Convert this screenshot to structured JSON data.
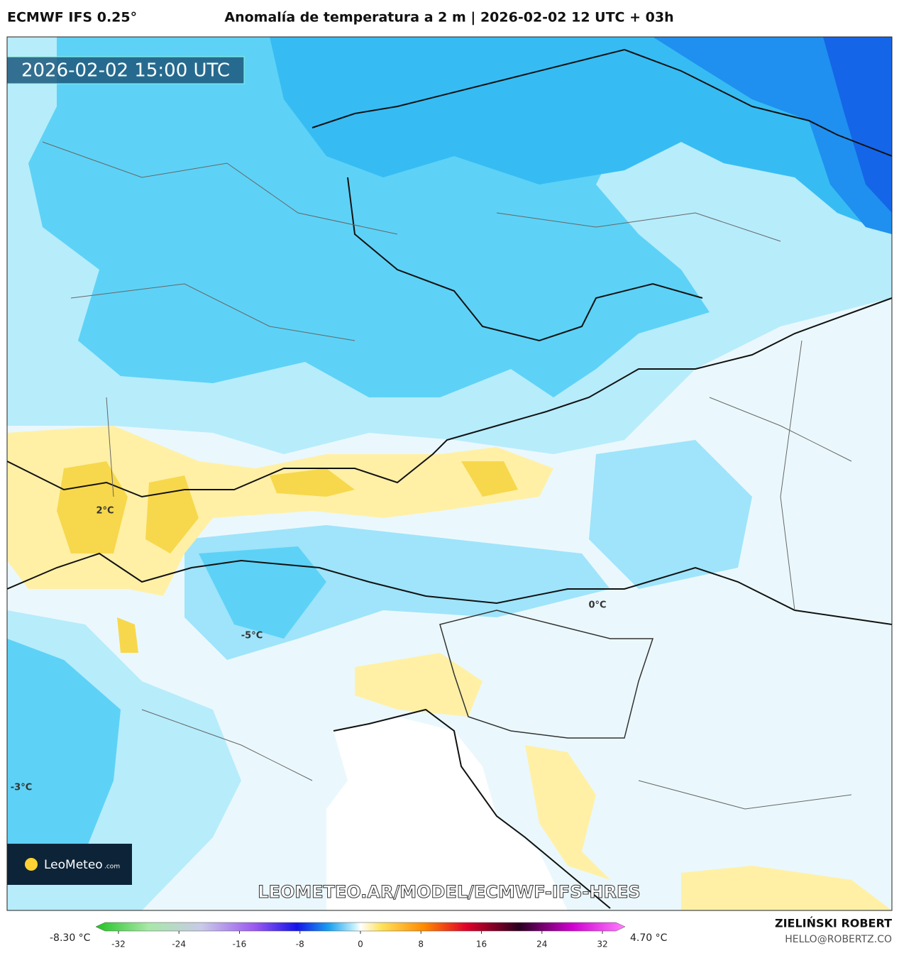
{
  "header": {
    "model": "ECMWF IFS 0.25°",
    "title": "Anomalía de temperatura a 2 m | 2026-02-02 12 UTC + 03h"
  },
  "map": {
    "timestamp": "2026-02-02 15:00 UTC",
    "contour_labels": [
      "2°C",
      "-5°C",
      "0°C",
      "-3°C"
    ],
    "logo": {
      "name": "LeoMeteo",
      "suffix": ".com"
    },
    "watermark": "LEOMETEO.AR/MODEL/ECMWF-IFS-HRES"
  },
  "colorbar": {
    "min_label": "-8.30 °C",
    "max_label": "4.70 °C",
    "lim": [
      -35,
      35
    ],
    "ticks": [
      -32,
      -24,
      -16,
      -8,
      0,
      8,
      16,
      24,
      32
    ]
  },
  "footer": {
    "author": "ZIELIŃSKI ROBERT",
    "contact": "HELLO@ROBERTZ.CO"
  }
}
